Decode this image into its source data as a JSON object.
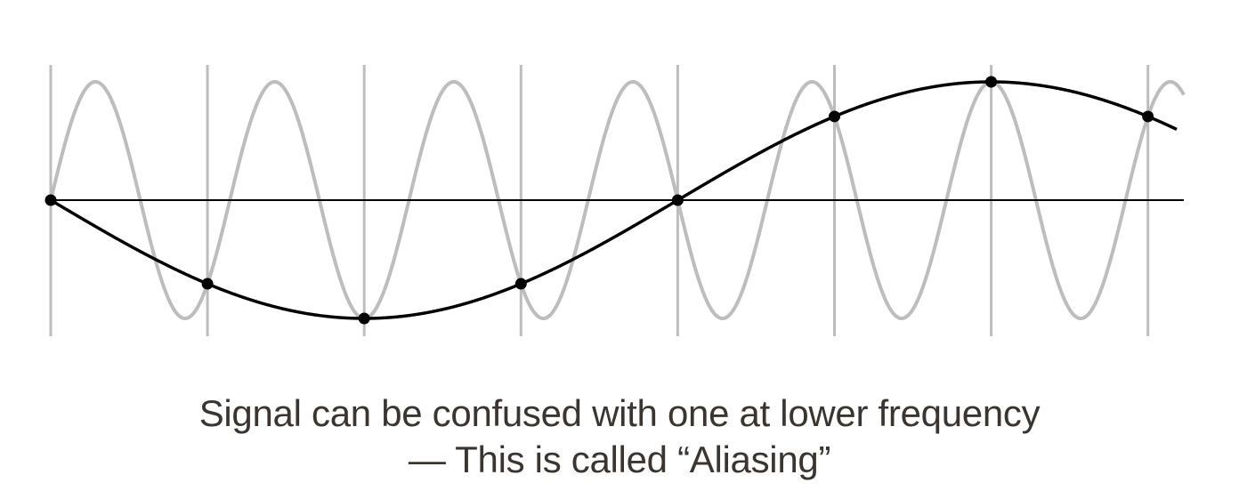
{
  "diagram": {
    "description_colors": {
      "high_frequency_signal": "#bdbdbd",
      "alias_signal": "#000000",
      "sample_lines": "#bdbdbd",
      "axis": "#000000",
      "sample_points": "#000000"
    },
    "sample_count": 8,
    "high_frequency_cycles_per_sample": 0.875,
    "alias_cycles_per_sample": 0.125
  },
  "caption": {
    "line1": "Signal can be confused with one at lower frequency",
    "line2": "— This is called “Aliasing”"
  }
}
